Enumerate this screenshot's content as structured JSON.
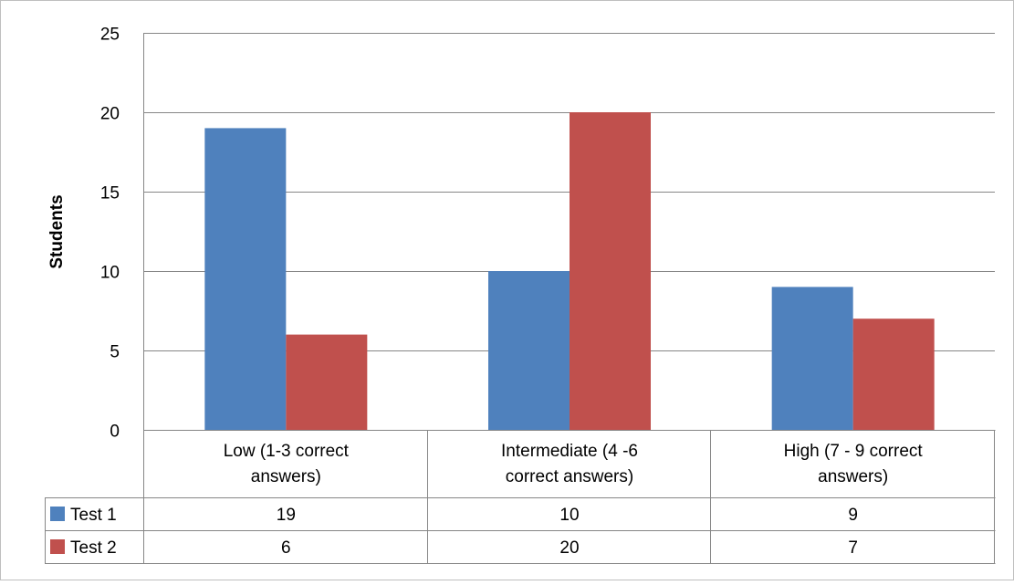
{
  "chart_data": {
    "type": "bar",
    "ylabel": "Students",
    "ylim": [
      0,
      25
    ],
    "yticks": [
      0,
      5,
      10,
      15,
      20,
      25
    ],
    "grid": true,
    "legend": "data-table-left",
    "categories": [
      [
        "Low (1-3 correct",
        "answers)"
      ],
      [
        "Intermediate (4 -6",
        "correct answers)"
      ],
      [
        "High (7 - 9 correct",
        "answers)"
      ]
    ],
    "series": [
      {
        "name": "Test 1",
        "values": [
          19,
          10,
          9
        ],
        "color": "#4F81BD"
      },
      {
        "name": "Test 2",
        "values": [
          6,
          20,
          7
        ],
        "color": "#C0504D"
      }
    ]
  }
}
